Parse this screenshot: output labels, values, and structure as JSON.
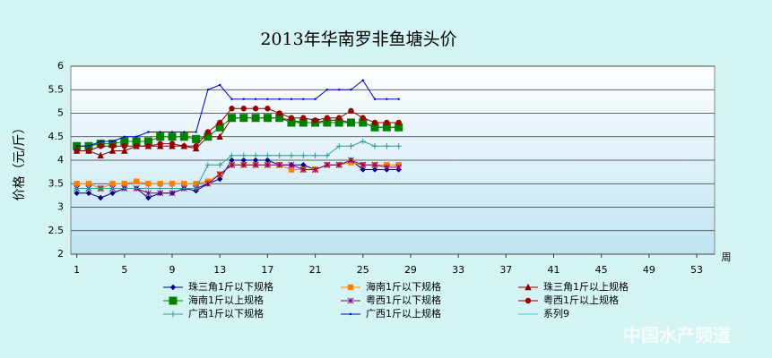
{
  "chart_data": {
    "type": "line",
    "title": "2013年华南罗非鱼塘头价",
    "y_label": "价格（元/斤）",
    "x_label": "周",
    "watermark": "中国水产频道",
    "x": [
      1,
      2,
      3,
      4,
      5,
      6,
      7,
      8,
      9,
      10,
      11,
      12,
      13,
      14,
      15,
      16,
      17,
      18,
      19,
      20,
      21,
      22,
      23,
      24,
      25,
      26,
      27,
      28
    ],
    "xlim": [
      0.5,
      54.5
    ],
    "xticks": [
      1,
      5,
      9,
      13,
      17,
      21,
      25,
      29,
      33,
      37,
      41,
      45,
      49,
      53
    ],
    "ylim": [
      2,
      6
    ],
    "yticks": [
      2,
      2.5,
      3,
      3.5,
      4,
      4.5,
      5,
      5.5,
      6
    ],
    "grid": true,
    "series": [
      {
        "name": "珠三角1斤以下规格",
        "color": "#000080",
        "marker": "diamond",
        "values": [
          3.3,
          3.3,
          3.2,
          3.3,
          3.4,
          3.4,
          3.2,
          3.3,
          3.3,
          3.4,
          3.35,
          3.5,
          3.6,
          4.0,
          4.0,
          4.0,
          4.0,
          3.9,
          3.9,
          3.9,
          3.8,
          3.9,
          3.9,
          4.0,
          3.8,
          3.8,
          3.8,
          3.8
        ]
      },
      {
        "name": "海南1斤以下规格",
        "color": "#ff8000",
        "marker": "square",
        "values": [
          3.5,
          3.5,
          3.4,
          3.5,
          3.5,
          3.55,
          3.5,
          3.5,
          3.5,
          3.5,
          3.5,
          3.55,
          3.7,
          3.9,
          3.9,
          3.9,
          3.9,
          3.9,
          3.8,
          3.8,
          3.8,
          3.9,
          3.9,
          3.95,
          3.9,
          3.9,
          3.9,
          3.9
        ]
      },
      {
        "name": "珠三角1斤以上规格",
        "color": "#800000",
        "marker": "triangle",
        "values": [
          4.2,
          4.2,
          4.1,
          4.2,
          4.2,
          4.3,
          4.3,
          4.3,
          4.3,
          4.3,
          4.25,
          4.5,
          4.5,
          4.9,
          4.9,
          4.9,
          4.9,
          4.9,
          4.85,
          4.8,
          4.8,
          4.85,
          4.85,
          4.8,
          4.8,
          4.7,
          4.7,
          4.7
        ]
      },
      {
        "name": "海南1斤以上规格",
        "color": "#008000",
        "marker": "bigsquare",
        "values": [
          4.3,
          4.3,
          4.35,
          4.35,
          4.4,
          4.4,
          4.4,
          4.5,
          4.5,
          4.5,
          4.45,
          4.5,
          4.7,
          4.9,
          4.9,
          4.9,
          4.9,
          4.9,
          4.8,
          4.8,
          4.8,
          4.8,
          4.8,
          4.8,
          4.8,
          4.7,
          4.7,
          4.7
        ]
      },
      {
        "name": "粤西1斤以下规格",
        "color": "#800080",
        "marker": "star",
        "values": [
          3.4,
          3.4,
          3.4,
          3.4,
          3.4,
          3.4,
          3.3,
          3.3,
          3.3,
          3.4,
          3.4,
          3.5,
          3.7,
          3.9,
          3.9,
          3.9,
          3.9,
          3.9,
          3.9,
          3.8,
          3.8,
          3.9,
          3.9,
          4.0,
          3.9,
          3.9,
          3.85,
          3.85
        ]
      },
      {
        "name": "粤西1斤以上规格",
        "color": "#990000",
        "marker": "circle",
        "values": [
          4.2,
          4.2,
          4.3,
          4.3,
          4.3,
          4.3,
          4.3,
          4.35,
          4.35,
          4.3,
          4.3,
          4.6,
          4.8,
          5.1,
          5.1,
          5.1,
          5.1,
          5.0,
          4.9,
          4.9,
          4.85,
          4.9,
          4.9,
          5.05,
          4.9,
          4.8,
          4.8,
          4.8
        ]
      },
      {
        "name": "广西1斤以下规格",
        "color": "#339999",
        "marker": "plus",
        "values": [
          3.4,
          3.4,
          3.4,
          3.4,
          3.4,
          3.4,
          3.4,
          3.4,
          3.4,
          3.4,
          3.4,
          3.9,
          3.9,
          4.1,
          4.1,
          4.1,
          4.1,
          4.1,
          4.1,
          4.1,
          4.1,
          4.1,
          4.3,
          4.3,
          4.4,
          4.3,
          4.3,
          4.3
        ]
      },
      {
        "name": "广西1斤以上规格",
        "color": "#0000cc",
        "marker": "dot",
        "values": [
          4.3,
          4.3,
          4.4,
          4.4,
          4.5,
          4.5,
          4.6,
          4.6,
          4.6,
          4.6,
          4.6,
          5.5,
          5.6,
          5.3,
          5.3,
          5.3,
          5.3,
          5.3,
          5.3,
          5.3,
          5.3,
          5.5,
          5.5,
          5.5,
          5.7,
          5.3,
          5.3,
          5.3
        ]
      },
      {
        "name": "系列9",
        "color": "#33cccc",
        "marker": "none",
        "values": [
          null,
          null,
          null,
          null,
          null,
          null,
          null,
          null,
          null,
          null,
          null,
          null,
          null,
          null,
          null,
          null,
          null,
          null,
          null,
          null,
          null,
          null,
          null,
          null,
          null,
          null,
          null,
          null
        ]
      }
    ]
  }
}
